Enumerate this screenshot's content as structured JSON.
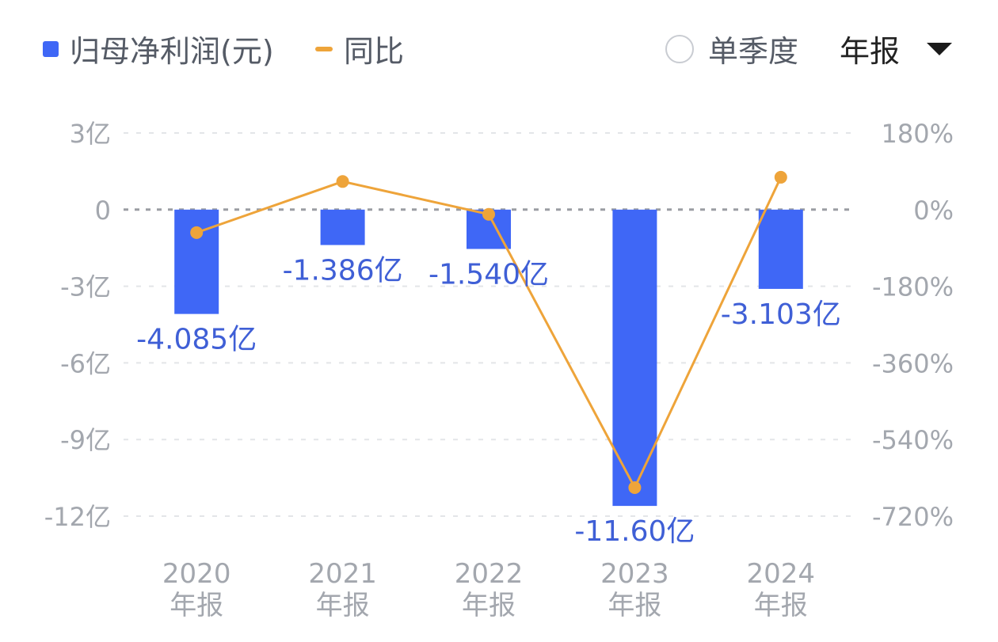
{
  "legend": {
    "bar_label": "归母净利润(元)",
    "line_label": "同比"
  },
  "controls": {
    "quarter_toggle_label": "单季度",
    "period_label": "年报"
  },
  "colors": {
    "bar": "#3f67f6",
    "line": "#eea43a",
    "bar_label": "#3f5fd6",
    "axis_text": "#a3a7ae",
    "grid": "#e3e5e8",
    "zero_line": "#9a9da3"
  },
  "chart_data": {
    "type": "bar+line",
    "categories": [
      "2020\n年报",
      "2021\n年报",
      "2022\n年报",
      "2023\n年报",
      "2024\n年报"
    ],
    "series": [
      {
        "name": "归母净利润(元)",
        "type": "bar",
        "axis": "left",
        "values": [
          -4.085,
          -1.386,
          -1.54,
          -11.6,
          -3.103
        ],
        "labels": [
          "-4.085亿",
          "-1.386亿",
          "-1.540亿",
          "-11.60亿",
          "-3.103亿"
        ]
      },
      {
        "name": "同比",
        "type": "line",
        "axis": "right",
        "values": [
          -54,
          66,
          -11,
          -653,
          76
        ]
      }
    ],
    "y_left": {
      "range": [
        -12,
        3
      ],
      "ticks": [
        3,
        0,
        -3,
        -6,
        -9,
        -12
      ],
      "tick_labels": [
        "3亿",
        "0",
        "-3亿",
        "-6亿",
        "-9亿",
        "-12亿"
      ]
    },
    "y_right": {
      "range": [
        -720,
        180
      ],
      "ticks": [
        180,
        0,
        -180,
        -360,
        -540,
        -720
      ],
      "tick_labels": [
        "180%",
        "0%",
        "-180%",
        "-360%",
        "-540%",
        "-720%"
      ]
    },
    "grid": true,
    "legend_position": "top-left"
  }
}
